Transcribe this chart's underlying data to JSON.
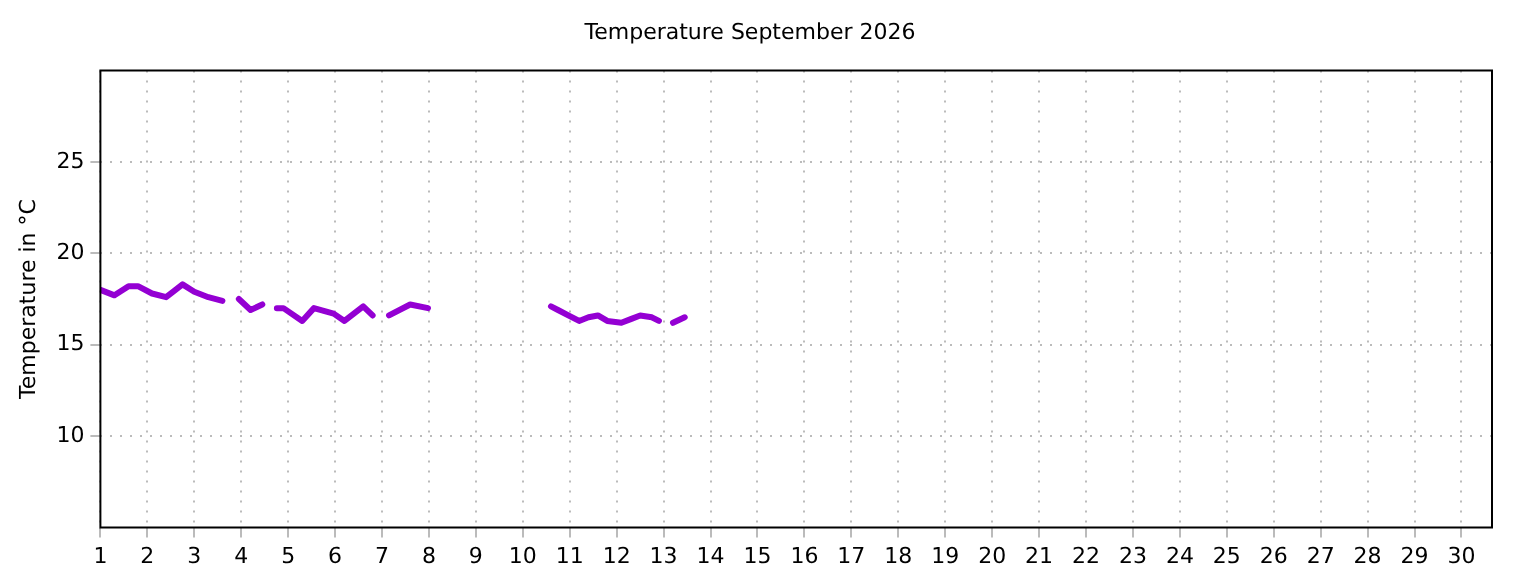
{
  "chart_data": {
    "type": "line",
    "title": "Temperature September 2026",
    "ylabel": "Temperature in °C",
    "x": [
      1.0,
      1.3,
      1.6,
      1.8,
      2.1,
      2.4,
      2.6,
      2.75,
      3.0,
      3.3,
      3.6,
      3.8,
      3.95,
      4.2,
      4.45,
      4.6,
      4.76,
      4.9,
      5.3,
      5.55,
      5.97,
      6.2,
      6.6,
      6.8,
      7.0,
      7.15,
      7.6,
      7.98,
      9.3,
      10.6,
      10.75,
      10.97,
      11.2,
      11.4,
      11.6,
      11.8,
      12.1,
      12.3,
      12.5,
      12.75,
      12.9,
      13.05,
      13.2,
      13.45
    ],
    "series": [
      {
        "color": "#9400d3",
        "values": [
          18.0,
          17.7,
          18.2,
          18.2,
          17.8,
          17.6,
          18.0,
          18.3,
          17.9,
          17.6,
          17.4,
          null,
          17.5,
          16.9,
          17.2,
          null,
          17.0,
          17.0,
          16.3,
          17.0,
          16.7,
          16.3,
          17.1,
          16.6,
          null,
          16.6,
          17.2,
          17.0,
          null,
          17.1,
          16.9,
          16.6,
          16.3,
          16.5,
          16.6,
          16.3,
          16.2,
          16.4,
          16.6,
          16.5,
          16.3,
          null,
          16.2,
          16.5
        ]
      }
    ],
    "xlim": [
      1,
      30.65
    ],
    "xticks": [
      1,
      2,
      3,
      4,
      5,
      6,
      7,
      8,
      9,
      10,
      11,
      12,
      13,
      14,
      15,
      16,
      17,
      18,
      19,
      20,
      21,
      22,
      23,
      24,
      25,
      26,
      27,
      28,
      29,
      30
    ],
    "ylim": [
      5,
      30
    ],
    "yticks": [
      10,
      15,
      20,
      25
    ],
    "grid": true,
    "legend": false,
    "marker": "none",
    "line_style": "solid"
  }
}
